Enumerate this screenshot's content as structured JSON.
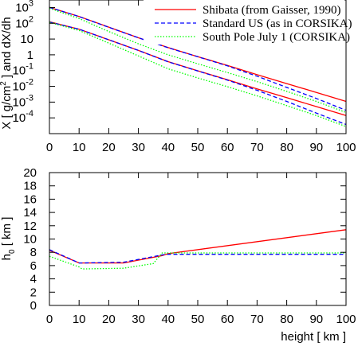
{
  "chart_data": [
    {
      "type": "line",
      "ylabel": "X [ g/cm",
      "ylabel_sup": "2",
      "ylabel_rest": " ] and dX/dh",
      "xlim": [
        0,
        100
      ],
      "yscale": "log",
      "ylim": [
        1e-05,
        3000
      ],
      "xticks": [
        0,
        10,
        20,
        30,
        40,
        50,
        60,
        70,
        80,
        90,
        100
      ],
      "yticks": [
        {
          "base": "10",
          "exp": "3",
          "value": 1000
        },
        {
          "base": "10",
          "exp": "2",
          "value": 100
        },
        {
          "base": "10",
          "exp": "",
          "value": 10
        },
        {
          "base": "1",
          "exp": "",
          "value": 1
        },
        {
          "base": "10",
          "exp": "-1",
          "value": 0.1
        },
        {
          "base": "10",
          "exp": "-2",
          "value": 0.01
        },
        {
          "base": "10",
          "exp": "-3",
          "value": 0.001
        },
        {
          "base": "10",
          "exp": "-4",
          "value": 0.0001
        }
      ],
      "legend": {
        "placement": "top-right",
        "entries": [
          {
            "label": "Shibata (from Gaisser, 1990)",
            "color": "#ff0000",
            "dash": "solid"
          },
          {
            "label": "Standard US (as in CORSIKA)",
            "color": "#0000ff",
            "dash": "dashed"
          },
          {
            "label": "South Pole July 1 (CORSIKA)",
            "color": "#00ff00",
            "dash": "dotted"
          }
        ]
      },
      "series": [
        {
          "name": "Shibata (from Gaisser, 1990)",
          "quantity": "X",
          "color": "#ff0000",
          "dash": "solid",
          "x": [
            0,
            10,
            20,
            30,
            40,
            50,
            60,
            70,
            80,
            90,
            100
          ],
          "y": [
            1030,
            270,
            57,
            12,
            2.9,
            0.77,
            0.21,
            0.055,
            0.015,
            0.0041,
            0.0011
          ]
        },
        {
          "name": "Standard US (as in CORSIKA)",
          "quantity": "X",
          "color": "#0000ff",
          "dash": "dashed",
          "x": [
            0,
            10,
            20,
            30,
            40,
            50,
            60,
            70,
            80,
            90,
            100
          ],
          "y": [
            1036,
            265,
            56,
            12,
            2.8,
            0.76,
            0.2,
            0.044,
            0.0085,
            0.0017,
            0.0003
          ]
        },
        {
          "name": "South Pole July 1 (CORSIKA)",
          "quantity": "X",
          "color": "#00ff00",
          "dash": "dotted",
          "x": [
            0,
            10,
            20,
            30,
            40,
            50,
            60,
            70,
            80,
            90,
            100
          ],
          "y": [
            900,
            200,
            30,
            5,
            1.0,
            0.27,
            0.075,
            0.02,
            0.0048,
            0.0011,
            0.00022
          ]
        },
        {
          "name": "Shibata (from Gaisser, 1990)",
          "quantity": "dX/dh",
          "color": "#ff0000",
          "dash": "solid",
          "x": [
            0,
            10,
            20,
            30,
            40,
            50,
            60,
            70,
            80,
            90,
            100
          ],
          "y": [
            125,
            42,
            9,
            1.9,
            0.37,
            0.097,
            0.026,
            0.0069,
            0.0019,
            0.00052,
            0.00014
          ]
        },
        {
          "name": "Standard US (as in CORSIKA)",
          "quantity": "dX/dh",
          "color": "#0000ff",
          "dash": "dashed",
          "x": [
            0,
            10,
            20,
            30,
            40,
            50,
            60,
            70,
            80,
            90,
            100
          ],
          "y": [
            120,
            42,
            9,
            1.9,
            0.36,
            0.095,
            0.025,
            0.0056,
            0.0011,
            0.0002,
            3.8e-05
          ]
        },
        {
          "name": "South Pole July 1 (CORSIKA)",
          "quantity": "dX/dh",
          "color": "#00ff00",
          "dash": "dotted",
          "x": [
            0,
            10,
            20,
            30,
            40,
            50,
            60,
            70,
            80,
            90,
            100
          ],
          "y": [
            115,
            35,
            5.5,
            0.85,
            0.13,
            0.034,
            0.0095,
            0.0025,
            0.0006,
            0.00014,
            2.8e-05
          ]
        }
      ]
    },
    {
      "type": "line",
      "ylabel": "h",
      "ylabel_sub": "0",
      "ylabel_rest": " [ km ]",
      "xlabel": "height [ km ]",
      "xlim": [
        0,
        100
      ],
      "ylim": [
        0,
        20
      ],
      "xticks": [
        0,
        10,
        20,
        30,
        40,
        50,
        60,
        70,
        80,
        90,
        100
      ],
      "yticks": [
        0,
        2,
        4,
        6,
        8,
        10,
        12,
        14,
        16,
        18,
        20
      ],
      "series": [
        {
          "name": "Shibata (from Gaisser, 1990)",
          "color": "#ff0000",
          "dash": "solid",
          "x": [
            0,
            10,
            11,
            25,
            38,
            40,
            100
          ],
          "y": [
            8.3,
            6.4,
            6.4,
            6.4,
            7.5,
            7.8,
            11.4
          ]
        },
        {
          "name": "Standard US (as in CORSIKA)",
          "color": "#0000ff",
          "dash": "dashed",
          "x": [
            0,
            10,
            11,
            25,
            38,
            40,
            100
          ],
          "y": [
            8.4,
            6.4,
            6.4,
            6.5,
            7.6,
            7.7,
            7.7
          ]
        },
        {
          "name": "South Pole July 1 (CORSIKA)",
          "color": "#00ff00",
          "dash": "dotted",
          "x": [
            0,
            10,
            11,
            25,
            35,
            38,
            40,
            100
          ],
          "y": [
            7.4,
            5.8,
            5.5,
            5.6,
            6.3,
            7.9,
            7.9,
            7.9
          ]
        }
      ]
    }
  ]
}
